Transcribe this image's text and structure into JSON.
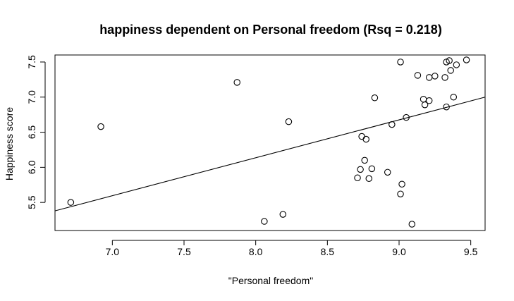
{
  "chart_data": {
    "type": "scatter",
    "title": "happiness dependent on Personal freedom (Rsq = 0.218)",
    "xlabel": "\"Personal freedom\"",
    "ylabel": "Happiness score",
    "xlim": [
      6.6,
      9.6
    ],
    "ylim": [
      5.1,
      7.6
    ],
    "xticks": [
      7.0,
      7.5,
      8.0,
      8.5,
      9.0,
      9.5
    ],
    "xtick_labels": [
      "7.0",
      "7.5",
      "8.0",
      "8.5",
      "9.0",
      "9.5"
    ],
    "yticks": [
      5.5,
      6.0,
      6.5,
      7.0,
      7.5
    ],
    "ytick_labels": [
      "5.5",
      "6.0",
      "6.5",
      "7.0",
      "7.5"
    ],
    "grid": false,
    "points": [
      {
        "x": 6.71,
        "y": 5.5
      },
      {
        "x": 6.92,
        "y": 6.58
      },
      {
        "x": 7.87,
        "y": 7.21
      },
      {
        "x": 8.06,
        "y": 5.23
      },
      {
        "x": 8.19,
        "y": 5.33
      },
      {
        "x": 8.23,
        "y": 6.65
      },
      {
        "x": 8.71,
        "y": 5.85
      },
      {
        "x": 8.73,
        "y": 5.97
      },
      {
        "x": 8.74,
        "y": 6.44
      },
      {
        "x": 8.76,
        "y": 6.1
      },
      {
        "x": 8.77,
        "y": 6.4
      },
      {
        "x": 8.79,
        "y": 5.84
      },
      {
        "x": 8.81,
        "y": 5.98
      },
      {
        "x": 8.83,
        "y": 6.99
      },
      {
        "x": 8.92,
        "y": 5.93
      },
      {
        "x": 8.95,
        "y": 6.61
      },
      {
        "x": 9.01,
        "y": 7.5
      },
      {
        "x": 9.01,
        "y": 5.62
      },
      {
        "x": 9.02,
        "y": 5.76
      },
      {
        "x": 9.05,
        "y": 6.71
      },
      {
        "x": 9.09,
        "y": 5.19
      },
      {
        "x": 9.13,
        "y": 7.31
      },
      {
        "x": 9.17,
        "y": 6.97
      },
      {
        "x": 9.18,
        "y": 6.89
      },
      {
        "x": 9.21,
        "y": 6.95
      },
      {
        "x": 9.21,
        "y": 7.28
      },
      {
        "x": 9.25,
        "y": 7.3
      },
      {
        "x": 9.32,
        "y": 7.28
      },
      {
        "x": 9.33,
        "y": 6.86
      },
      {
        "x": 9.33,
        "y": 7.5
      },
      {
        "x": 9.35,
        "y": 7.52
      },
      {
        "x": 9.36,
        "y": 7.38
      },
      {
        "x": 9.38,
        "y": 7.0
      },
      {
        "x": 9.4,
        "y": 7.46
      },
      {
        "x": 9.47,
        "y": 7.53
      }
    ],
    "regression_line": {
      "x": [
        6.6,
        9.6
      ],
      "y": [
        5.38,
        7.0
      ]
    },
    "colors": {
      "points": "#000000",
      "line": "#000000",
      "axis": "#000000",
      "background": "#ffffff"
    }
  }
}
